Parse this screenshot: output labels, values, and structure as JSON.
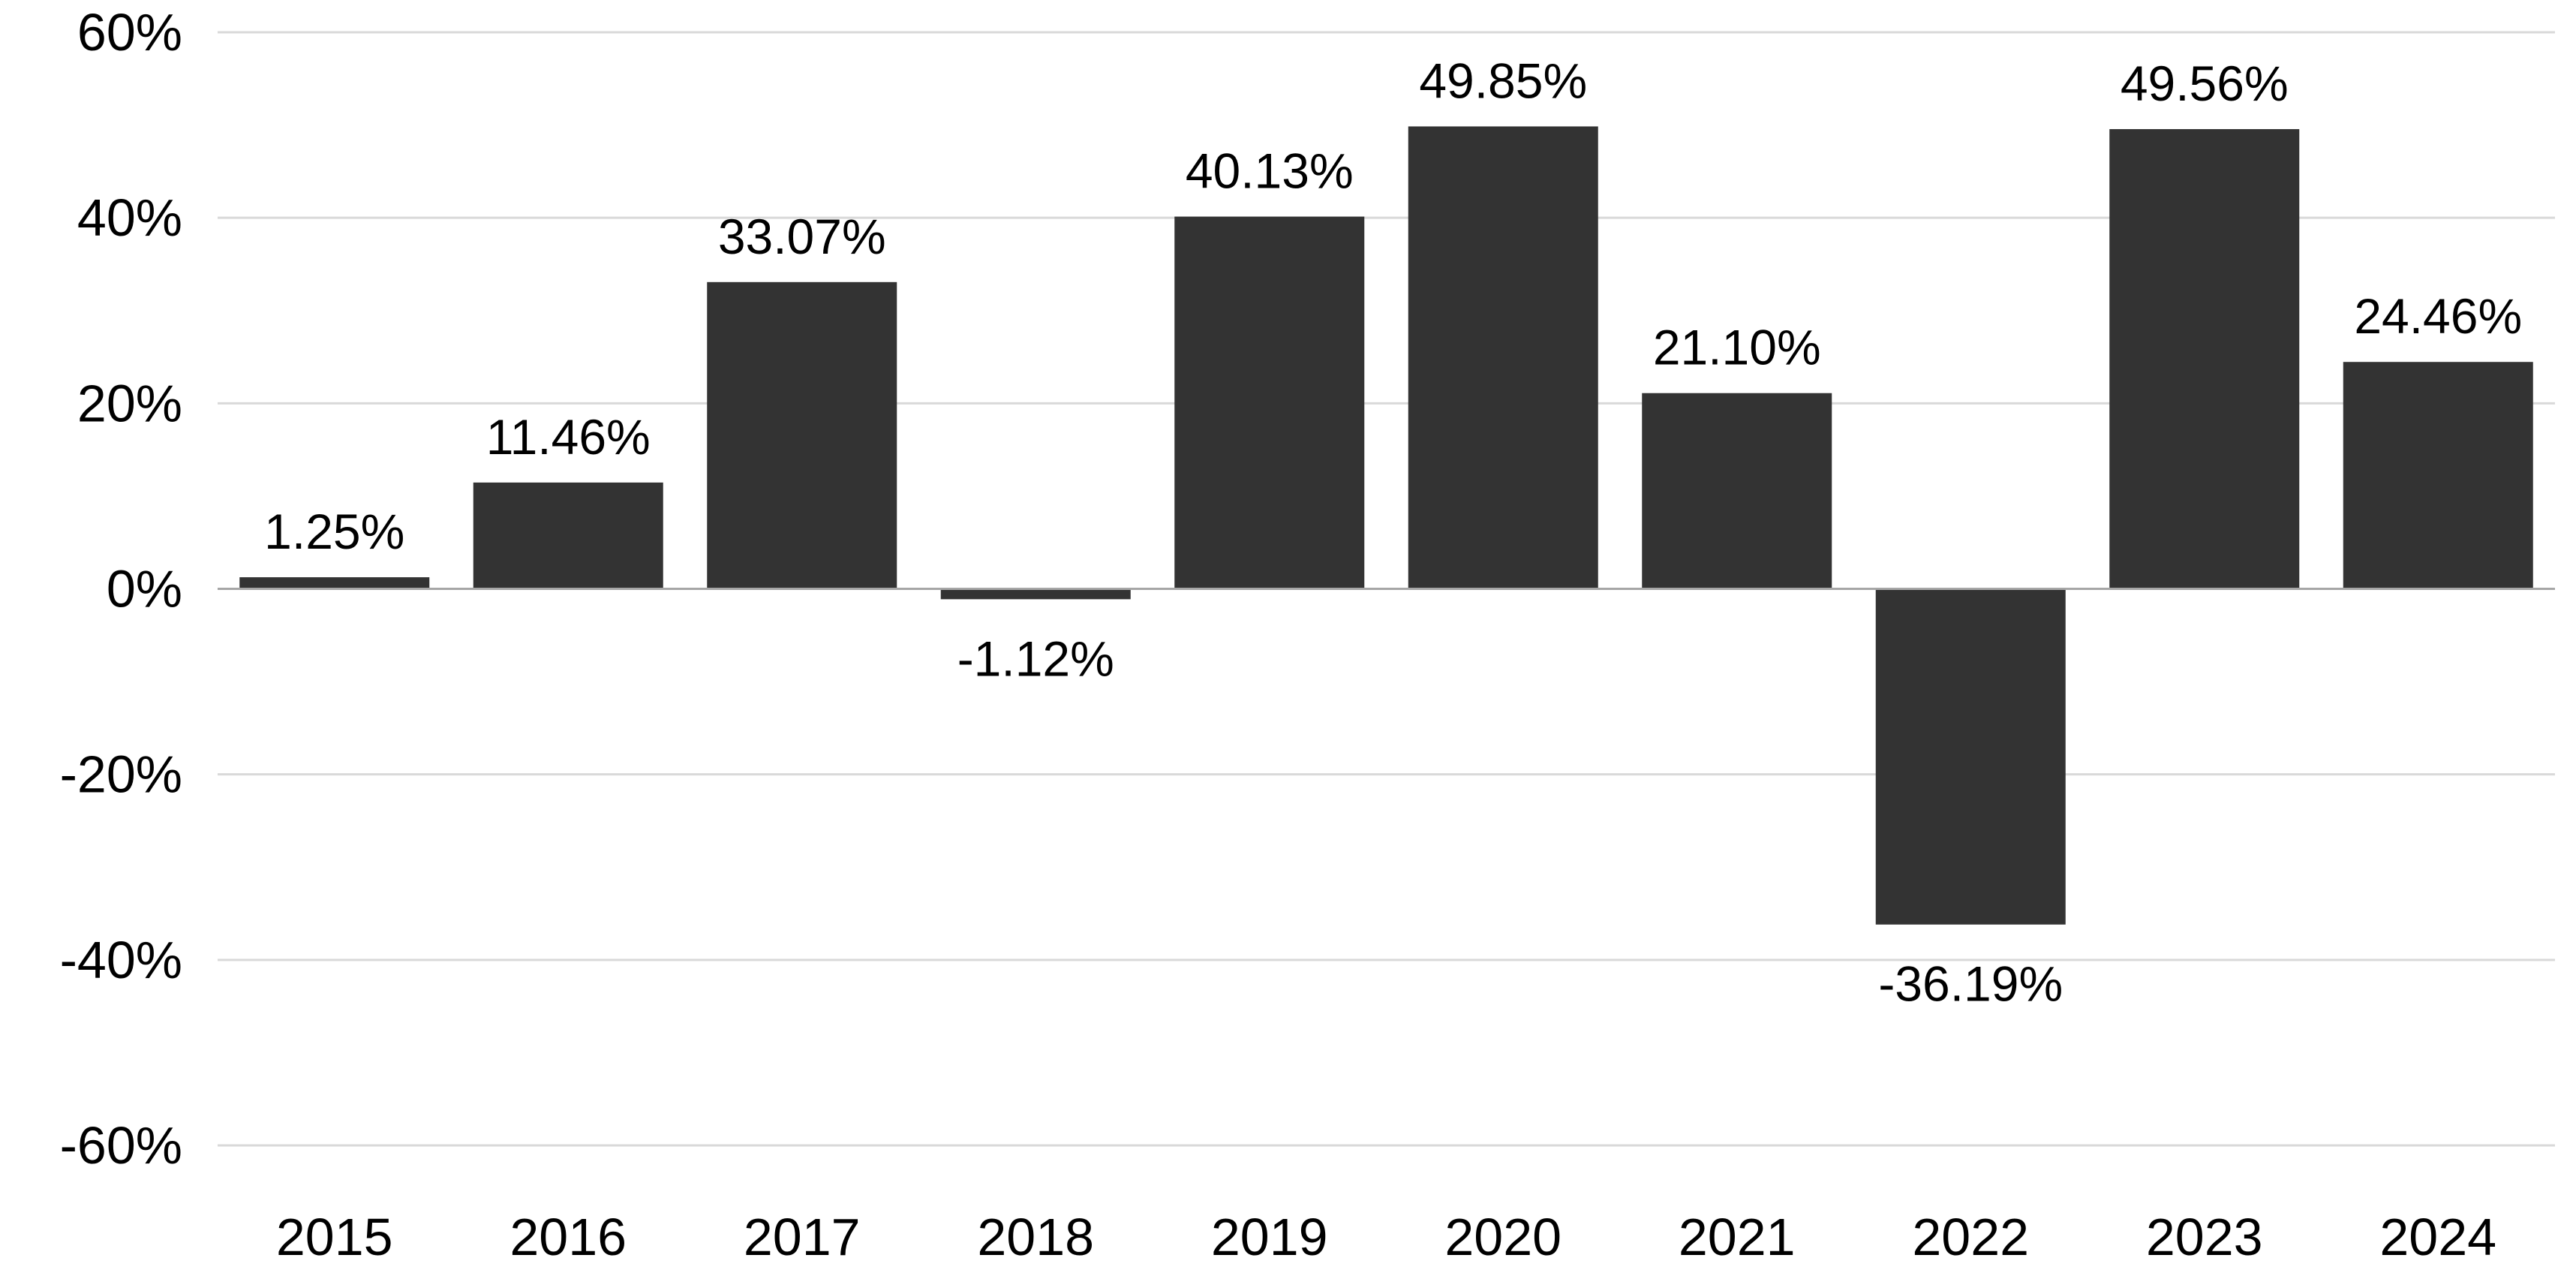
{
  "chart_data": {
    "type": "bar",
    "categories": [
      "2015",
      "2016",
      "2017",
      "2018",
      "2019",
      "2020",
      "2021",
      "2022",
      "2023",
      "2024"
    ],
    "values": [
      1.25,
      11.46,
      33.07,
      -1.12,
      40.13,
      49.85,
      21.1,
      -36.19,
      49.56,
      24.46
    ],
    "data_labels": [
      "1.25%",
      "11.46%",
      "33.07%",
      "-1.12%",
      "40.13%",
      "49.85%",
      "21.10%",
      "-36.19%",
      "49.56%",
      "24.46%"
    ],
    "y_ticks": [
      60,
      40,
      20,
      0,
      -20,
      -40,
      -60
    ],
    "y_tick_labels": [
      "60%",
      "40%",
      "20%",
      "0%",
      "-20%",
      "-40%",
      "-60%"
    ],
    "ylim": [
      -60,
      60
    ],
    "title": "",
    "xlabel": "",
    "ylabel": "",
    "grid": "horizontal",
    "legend": "none",
    "colors": {
      "bar": "#333333",
      "grid": "#d9d9d9",
      "zero_axis": "#a6a6a6",
      "text": "#000000",
      "background": "#ffffff"
    }
  }
}
